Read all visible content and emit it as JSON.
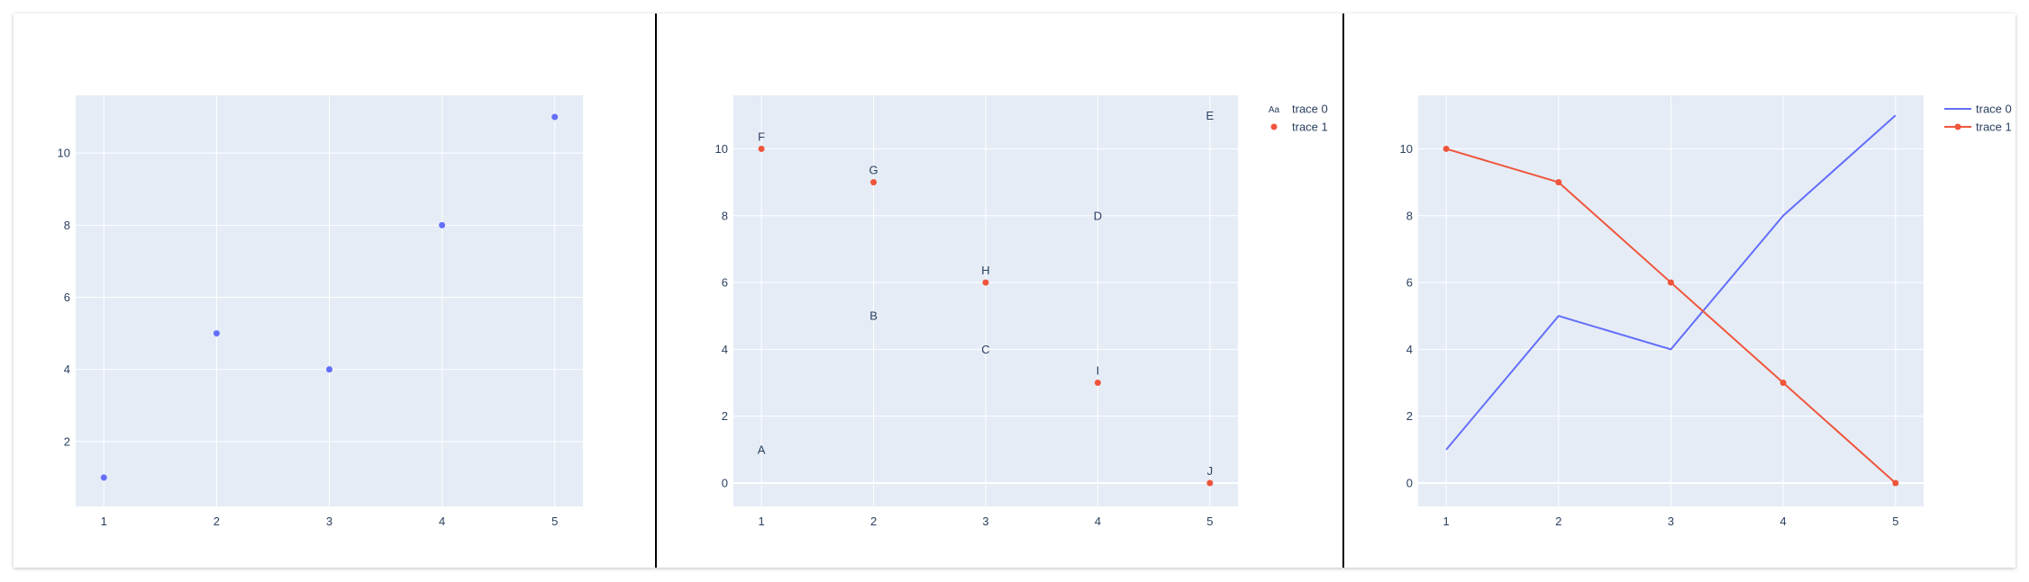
{
  "colors": {
    "plot_bg": "#e5ecf6",
    "grid": "#ffffff",
    "text": "#2a3f5f",
    "blue": "#636efa",
    "red": "#ef553b"
  },
  "chart_data": [
    {
      "type": "scatter",
      "x": [
        1,
        2,
        3,
        4,
        5
      ],
      "ylim": [
        0.2,
        11.6
      ],
      "xlim": [
        0.75,
        5.25
      ],
      "yticks": [
        2,
        4,
        6,
        8,
        10
      ],
      "xticks": [
        1,
        2,
        3,
        4,
        5
      ],
      "legend": false,
      "series": [
        {
          "mode": "markers",
          "color": "#636efa",
          "y": [
            1,
            5,
            4,
            8,
            11
          ]
        }
      ]
    },
    {
      "type": "scatter",
      "x": [
        1,
        2,
        3,
        4,
        5
      ],
      "ylim": [
        -0.7,
        11.6
      ],
      "xlim": [
        0.75,
        5.25
      ],
      "yticks": [
        0,
        2,
        4,
        6,
        8,
        10
      ],
      "xticks": [
        1,
        2,
        3,
        4,
        5
      ],
      "legend": true,
      "legend_placement": "top-right outside",
      "series": [
        {
          "name": "trace 0",
          "mode": "text",
          "color": "#2a3f5f",
          "y": [
            1,
            5,
            4,
            8,
            11
          ],
          "text": [
            "A",
            "B",
            "C",
            "D",
            "E"
          ]
        },
        {
          "name": "trace 1",
          "mode": "markers+text",
          "color": "#ef553b",
          "y": [
            10,
            9,
            6,
            3,
            0
          ],
          "text": [
            "F",
            "G",
            "H",
            "I",
            "J"
          ]
        }
      ]
    },
    {
      "type": "line",
      "x": [
        1,
        2,
        3,
        4,
        5
      ],
      "ylim": [
        -0.7,
        11.6
      ],
      "xlim": [
        0.75,
        5.25
      ],
      "yticks": [
        0,
        2,
        4,
        6,
        8,
        10
      ],
      "xticks": [
        1,
        2,
        3,
        4,
        5
      ],
      "legend": true,
      "legend_placement": "top-right outside",
      "series": [
        {
          "name": "trace 0",
          "mode": "lines",
          "color": "#636efa",
          "y": [
            1,
            5,
            4,
            8,
            11
          ]
        },
        {
          "name": "trace 1",
          "mode": "lines+markers",
          "color": "#ef553b",
          "y": [
            10,
            9,
            6,
            3,
            0
          ]
        }
      ]
    }
  ]
}
